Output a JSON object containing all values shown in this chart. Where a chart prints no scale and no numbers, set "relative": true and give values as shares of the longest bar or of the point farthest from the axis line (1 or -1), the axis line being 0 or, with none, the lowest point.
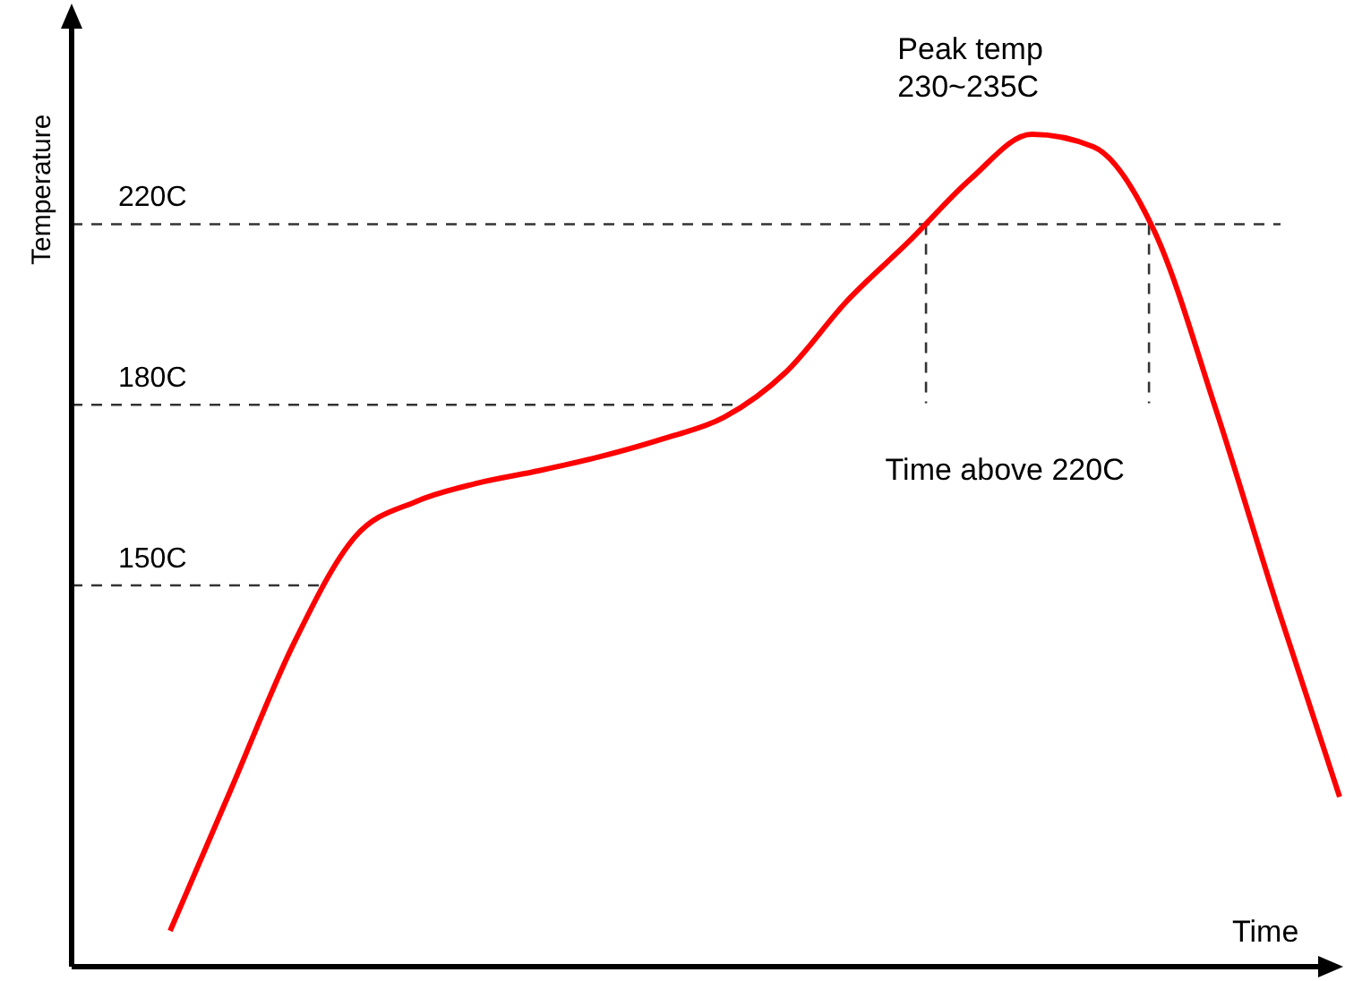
{
  "chart_data": {
    "type": "line",
    "relative": true,
    "xlabel": "Time",
    "ylabel": "Temperature",
    "categories": [
      null,
      null,
      null,
      null,
      null,
      null,
      null,
      null,
      null,
      null,
      null,
      null,
      null,
      null,
      null,
      null,
      null,
      null,
      null,
      null
    ],
    "series": [
      {
        "color": "#ff0000",
        "values": [
          0.043,
          0.215,
          0.387,
          0.516,
          0.559,
          0.581,
          0.596,
          0.613,
          0.634,
          0.66,
          0.714,
          0.8,
          0.871,
          0.946,
          1.0,
          0.985,
          0.882,
          0.667,
          0.43,
          0.204
        ]
      }
    ],
    "ref_lines": [
      {
        "axis": "y",
        "value": 0.892,
        "label": "220C",
        "line_style": "dashed",
        "color": "#333333"
      },
      {
        "axis": "y",
        "value": 0.675,
        "label": "180C",
        "line_style": "dashed",
        "color": "#333333"
      },
      {
        "axis": "y",
        "value": 0.458,
        "label": "150C",
        "line_style": "dashed",
        "color": "#333333"
      }
    ],
    "annotations": [
      "Peak temp\n230~235C",
      "Time above 220C"
    ],
    "line_style": "solid",
    "marker": "none"
  }
}
